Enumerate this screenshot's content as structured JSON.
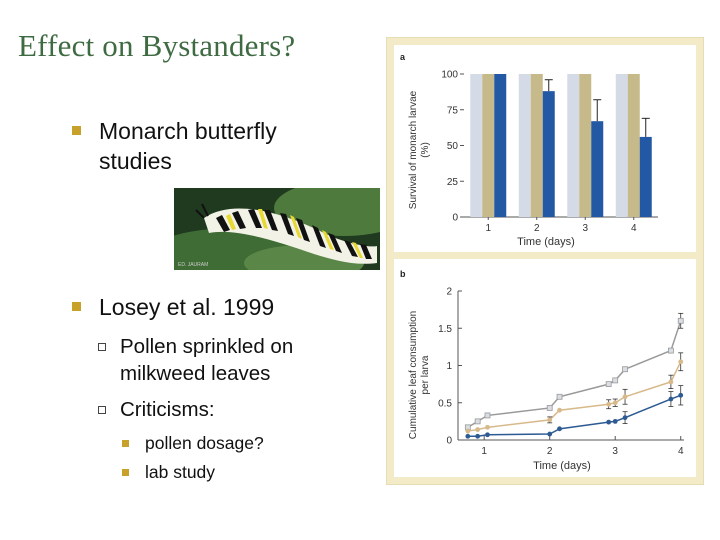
{
  "title": "Effect on Bystanders?",
  "bullets": {
    "b1": "Monarch butterfly studies",
    "b2": "Losey et al. 1999",
    "b2a": "Pollen sprinkled on milkweed leaves",
    "b2b": "Criticisms:",
    "b2b1": "pollen dosage?",
    "b2b2": "lab study"
  },
  "photo": {
    "caption": "ED. JAURAM"
  },
  "colors": {
    "title": "#3f6b43",
    "bullet": "#c8a12a",
    "panel_bg": "#f3ebc8"
  },
  "chart_data": [
    {
      "type": "bar",
      "panel_label": "a",
      "xlabel": "Time (days)",
      "ylabel_lines": [
        "Survival of monarch larvae",
        "(%)"
      ],
      "categories": [
        "1",
        "2",
        "3",
        "4"
      ],
      "ylim": [
        0,
        100
      ],
      "yticks": [
        "0",
        "25",
        "50",
        "75",
        "100"
      ],
      "series": [
        {
          "color": "#d5dbe6",
          "values": [
            100,
            100,
            100,
            100
          ]
        },
        {
          "color": "#c6b98a",
          "values": [
            100,
            100,
            100,
            100
          ]
        },
        {
          "color": "#2358a4",
          "values": [
            100,
            88,
            67,
            56
          ],
          "errors": [
            0,
            8,
            15,
            13
          ]
        }
      ]
    },
    {
      "type": "line",
      "panel_label": "b",
      "xlabel": "Time (days)",
      "ylabel_lines": [
        "Cumulative leaf consumption",
        "per larva"
      ],
      "xlim": [
        0.6,
        4.05
      ],
      "ylim": [
        0,
        2
      ],
      "xticks": [
        "1",
        "2",
        "3",
        "4"
      ],
      "yticks": [
        "0",
        "0.5",
        "1",
        "1.5",
        "2"
      ],
      "series": [
        {
          "color": "#999999",
          "marker": "square",
          "x": [
            0.75,
            0.9,
            1.05,
            2.0,
            2.15,
            2.9,
            3.0,
            3.15,
            3.85,
            4.0
          ],
          "y": [
            0.17,
            0.25,
            0.33,
            0.43,
            0.58,
            0.75,
            0.8,
            0.95,
            1.2,
            1.6
          ],
          "err": [
            0,
            0,
            0,
            0,
            0,
            0,
            0,
            0,
            0,
            0.1
          ]
        },
        {
          "color": "#d7b98a",
          "marker": "circle",
          "x": [
            0.75,
            0.9,
            1.05,
            2.0,
            2.15,
            2.9,
            3.0,
            3.15,
            3.85,
            4.0
          ],
          "y": [
            0.12,
            0.14,
            0.17,
            0.27,
            0.4,
            0.48,
            0.5,
            0.58,
            0.78,
            1.05
          ],
          "err": [
            0,
            0,
            0,
            0.04,
            0,
            0.06,
            0.05,
            0.1,
            0.09,
            0.12
          ]
        },
        {
          "color": "#2d5a93",
          "marker": "circle",
          "x": [
            0.75,
            0.9,
            1.05,
            2.0,
            2.15,
            2.9,
            3.0,
            3.15,
            3.85,
            4.0
          ],
          "y": [
            0.05,
            0.05,
            0.07,
            0.08,
            0.15,
            0.24,
            0.25,
            0.3,
            0.55,
            0.6
          ],
          "err": [
            0,
            0,
            0,
            0,
            0,
            0,
            0,
            0.08,
            0.1,
            0.13
          ]
        }
      ]
    }
  ]
}
